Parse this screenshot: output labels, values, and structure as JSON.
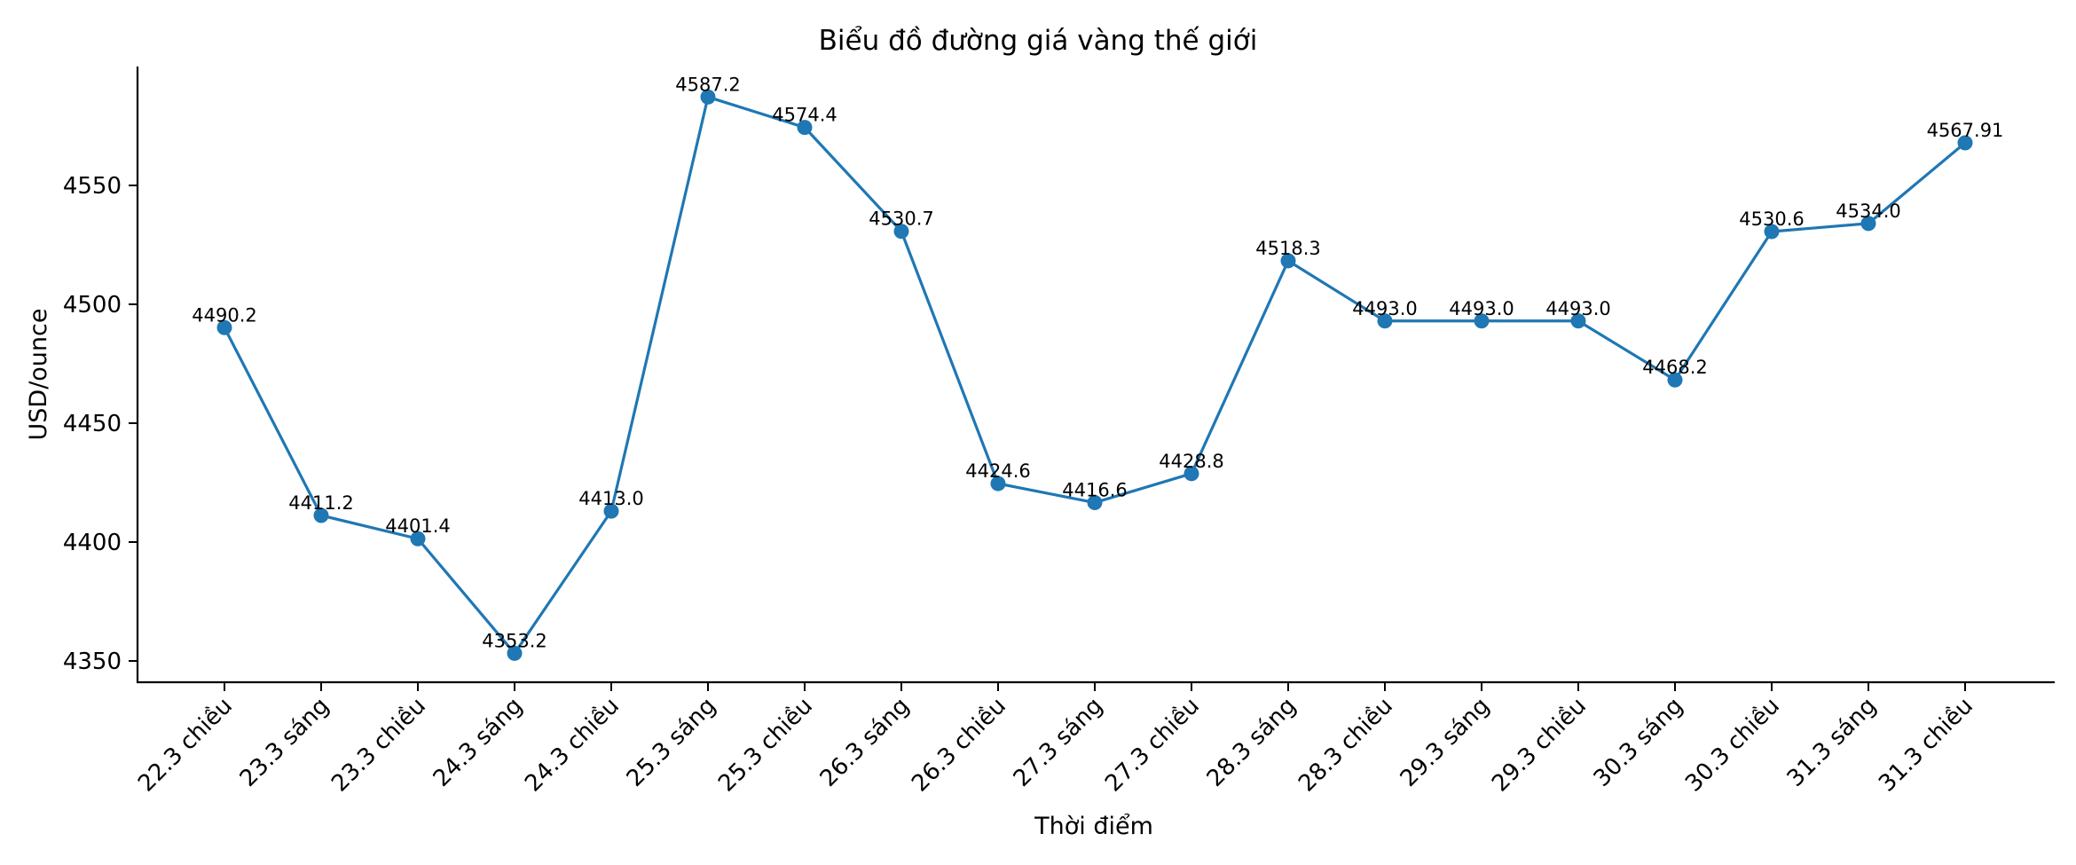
{
  "chart_data": {
    "type": "line",
    "title": "Biểu đồ đường giá vàng thế giới",
    "xlabel": "Thời điểm",
    "ylabel": "USD/ounce",
    "categories": [
      "22.3 chiều",
      "23.3 sáng",
      "23.3 chiều",
      "24.3 sáng",
      "24.3 chiều",
      "25.3 sáng",
      "25.3 chiều",
      "26.3 sáng",
      "26.3 chiều",
      "27.3 sáng",
      "27.3 chiều",
      "28.3 sáng",
      "28.3 chiều",
      "29.3 sáng",
      "29.3 chiều",
      "30.3 sáng",
      "30.3 chiều",
      "31.3 sáng",
      "31.3 chiều"
    ],
    "series": [
      {
        "name": "Giá vàng thế giới",
        "color": "#1f77b4",
        "values": [
          4490.2,
          4411.2,
          4401.4,
          4353.2,
          4413.0,
          4587.2,
          4574.4,
          4530.7,
          4424.6,
          4416.6,
          4428.8,
          4518.3,
          4493.0,
          4493.0,
          4493.0,
          4468.2,
          4530.6,
          4534.0,
          4567.91
        ],
        "labels": [
          "4490.2",
          "4411.2",
          "4401.4",
          "4353.2",
          "4413.0",
          "4587.2",
          "4574.4",
          "4530.7",
          "4424.6",
          "4416.6",
          "4428.8",
          "4518.3",
          "4493.0",
          "4493.0",
          "4493.0",
          "4468.2",
          "4530.6",
          "4534.0",
          "4567.91"
        ]
      }
    ],
    "yticks": [
      4350,
      4400,
      4450,
      4500,
      4550
    ],
    "ylim": [
      4341,
      4600
    ],
    "grid": false,
    "legend": null,
    "markers": true
  }
}
